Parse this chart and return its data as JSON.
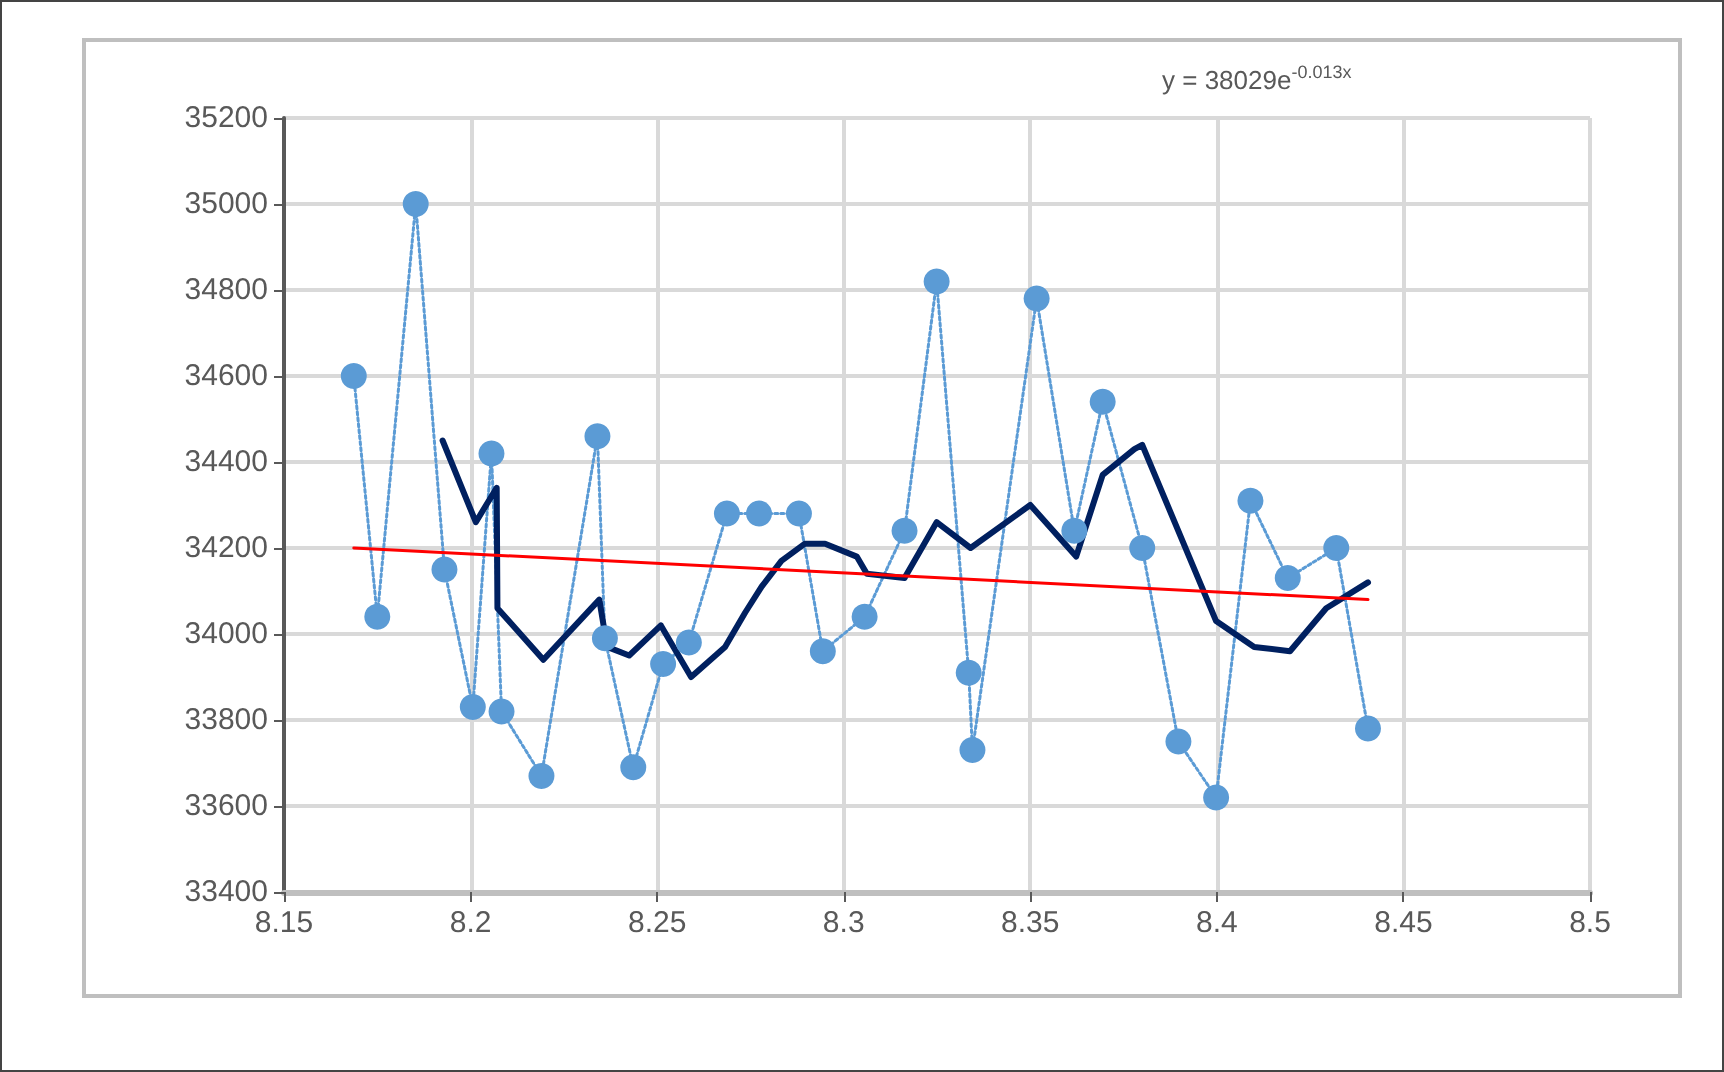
{
  "chart_data": {
    "type": "line",
    "annotations": [
      "y = 38029e$^{-0.013x}$"
    ],
    "xlim": [
      8.15,
      8.5
    ],
    "xticks": [
      8.15,
      8.2,
      8.25,
      8.3,
      8.35,
      8.4,
      8.45,
      8.5
    ],
    "ylim": [
      33400,
      35200
    ],
    "yticks": [
      33400,
      33600,
      33800,
      34000,
      34200,
      34400,
      34600,
      34800,
      35000,
      35200
    ],
    "grid": true,
    "series": [
      {
        "marker": "circle",
        "line_style": "dotted",
        "color": "#5b9bd5",
        "x": [
          8.1687,
          8.175,
          8.1853,
          8.193,
          8.2006,
          8.2056,
          8.2083,
          8.219,
          8.234,
          8.236,
          8.2436,
          8.2516,
          8.2585,
          8.2687,
          8.2773,
          8.288,
          8.2944,
          8.3056,
          8.3163,
          8.3249,
          8.3335,
          8.3345,
          8.3517,
          8.3618,
          8.3694,
          8.38,
          8.3897,
          8.3998,
          8.409,
          8.419,
          8.432,
          8.4405
        ],
        "values": [
          34600,
          34040,
          35000,
          34150,
          33830,
          34420,
          33820,
          33670,
          34460,
          33990,
          33690,
          33930,
          33980,
          34280,
          34280,
          34280,
          33960,
          34040,
          34240,
          34820,
          33910,
          33730,
          34780,
          34240,
          34540,
          34200,
          33750,
          33620,
          34310,
          34130,
          34200,
          33780
        ]
      },
      {
        "marker": "none",
        "line_style": "solid",
        "color": "#002060",
        "x": [
          8.1925,
          8.2014,
          8.207,
          8.2072,
          8.2195,
          8.2345,
          8.2366,
          8.2425,
          8.251,
          8.2591,
          8.2682,
          8.2736,
          8.278,
          8.2833,
          8.2896,
          8.295,
          8.3035,
          8.3062,
          8.3163,
          8.3249,
          8.334,
          8.35,
          8.3623,
          8.3694,
          8.3779,
          8.38,
          8.3998,
          8.41,
          8.4196,
          8.4293,
          8.4405
        ],
        "values": [
          34450,
          34260,
          34340,
          34060,
          33940,
          34080,
          33970,
          33950,
          34020,
          33900,
          33970,
          34050,
          34110,
          34170,
          34210,
          34210,
          34180,
          34140,
          34130,
          34260,
          34200,
          34300,
          34180,
          34370,
          34430,
          34440,
          34030,
          33970,
          33960,
          34060,
          34120
        ]
      },
      {
        "marker": "none",
        "line_style": "solid",
        "color": "#ff0000",
        "x": [
          8.1687,
          8.3046,
          8.4405
        ],
        "values": [
          34200,
          34140,
          34080
        ]
      }
    ]
  }
}
